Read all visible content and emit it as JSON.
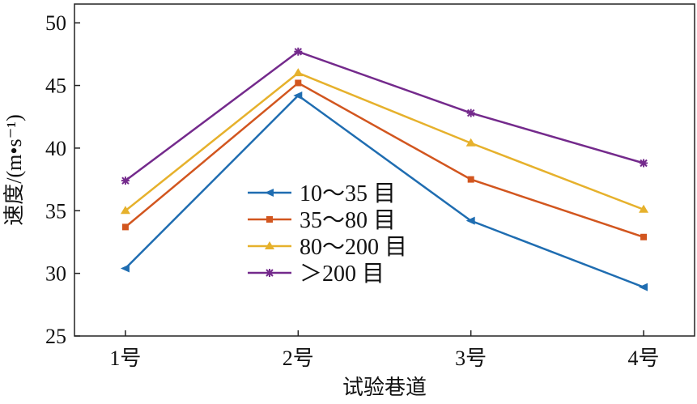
{
  "chart_data": {
    "type": "line",
    "title": "",
    "xlabel": "试验巷道",
    "ylabel": "速度/(m•s⁻¹)",
    "categories": [
      "1号",
      "2号",
      "3号",
      "4号"
    ],
    "ylim": [
      25,
      51.5
    ],
    "yticks": [
      25,
      30,
      35,
      40,
      45,
      50
    ],
    "grid": false,
    "legend": "center-left",
    "series": [
      {
        "name": "10～35 目",
        "values": [
          30.4,
          44.2,
          34.2,
          28.9
        ],
        "color": "#1f6db1",
        "marker": "triangle-left"
      },
      {
        "name": "35～80 目",
        "values": [
          33.7,
          45.2,
          37.5,
          32.9
        ],
        "color": "#d2561f",
        "marker": "square"
      },
      {
        "name": "80～200 目",
        "values": [
          35.0,
          46.0,
          40.4,
          35.1
        ],
        "color": "#e6b12c",
        "marker": "triangle-up"
      },
      {
        "name": "＞200 目",
        "values": [
          37.4,
          47.7,
          42.8,
          38.8
        ],
        "color": "#742a8c",
        "marker": "star"
      }
    ]
  }
}
